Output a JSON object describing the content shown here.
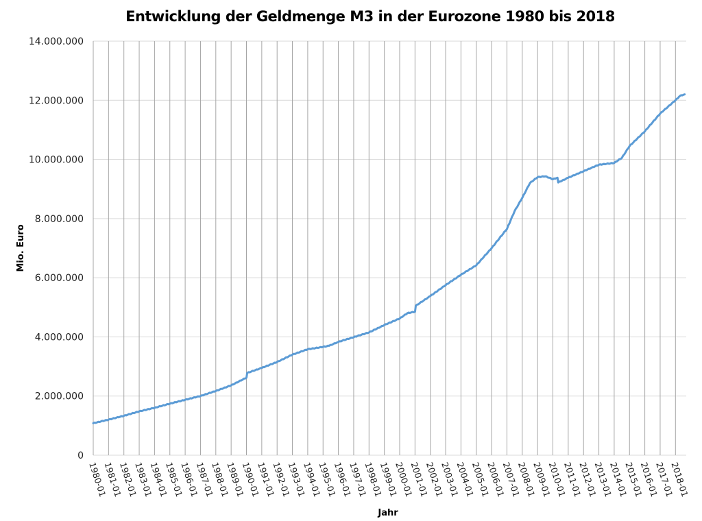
{
  "chart_data": {
    "type": "line",
    "title": "Entwicklung der Geldmenge M3 in der Eurozone 1980 bis 2018",
    "xlabel": "Jahr",
    "ylabel": "Mio. Euro",
    "ylim": [
      0,
      14000000
    ],
    "xlim": [
      1980.0,
      2018.6
    ],
    "y_ticks": [
      0,
      2000000,
      4000000,
      6000000,
      8000000,
      10000000,
      12000000,
      14000000
    ],
    "y_tick_labels": [
      "0",
      "2.000.000",
      "4.000.000",
      "6.000.000",
      "8.000.000",
      "10.000.000",
      "12.000.000",
      "14.000.000"
    ],
    "x_tick_labels": [
      "1980-01",
      "1981-01",
      "1982-01",
      "1983-01",
      "1984-01",
      "1985-01",
      "1986-01",
      "1987-01",
      "1988-01",
      "1989-01",
      "1990-01",
      "1991-01",
      "1992-01",
      "1993-01",
      "1994-01",
      "1995-01",
      "1996-01",
      "1997-01",
      "1998-01",
      "1999-01",
      "2000-01",
      "2001-01",
      "2002-01",
      "2003-01",
      "2004-01",
      "2005-01",
      "2006-01",
      "2007-01",
      "2008-01",
      "2009-01",
      "2010-01",
      "2011-01",
      "2012-01",
      "2013-01",
      "2014-01",
      "2015-01",
      "2016-01",
      "2017-01",
      "2018-01"
    ],
    "grid": {
      "vertical": true,
      "horizontal": true
    },
    "legend": "none",
    "series": [
      {
        "name": "Geldmenge M3",
        "color": "#5b9bd5",
        "x": [
          1980.0,
          1981.0,
          1982.0,
          1983.0,
          1984.0,
          1985.0,
          1986.0,
          1987.0,
          1988.0,
          1989.0,
          1990.0,
          1990.05,
          1991.0,
          1992.0,
          1993.0,
          1994.0,
          1995.0,
          1995.4,
          1996.0,
          1997.0,
          1998.0,
          1999.0,
          2000.0,
          2000.5,
          2001.0,
          2001.05,
          2002.0,
          2003.0,
          2004.0,
          2005.0,
          2006.0,
          2007.0,
          2007.5,
          2008.0,
          2008.5,
          2009.0,
          2009.5,
          2010.0,
          2010.3,
          2010.35,
          2011.0,
          2012.0,
          2013.0,
          2014.0,
          2014.5,
          2015.0,
          2016.0,
          2017.0,
          2018.0,
          2018.3,
          2018.6
        ],
        "values": [
          1080000,
          1200000,
          1330000,
          1480000,
          1600000,
          1740000,
          1870000,
          2000000,
          2170000,
          2360000,
          2620000,
          2780000,
          2950000,
          3150000,
          3400000,
          3580000,
          3660000,
          3700000,
          3830000,
          3990000,
          4150000,
          4400000,
          4620000,
          4800000,
          4850000,
          5050000,
          5380000,
          5750000,
          6100000,
          6420000,
          7000000,
          7650000,
          8250000,
          8700000,
          9200000,
          9400000,
          9430000,
          9330000,
          9380000,
          9220000,
          9380000,
          9600000,
          9820000,
          9880000,
          10050000,
          10450000,
          10950000,
          11550000,
          12000000,
          12150000,
          12200000
        ]
      }
    ]
  }
}
